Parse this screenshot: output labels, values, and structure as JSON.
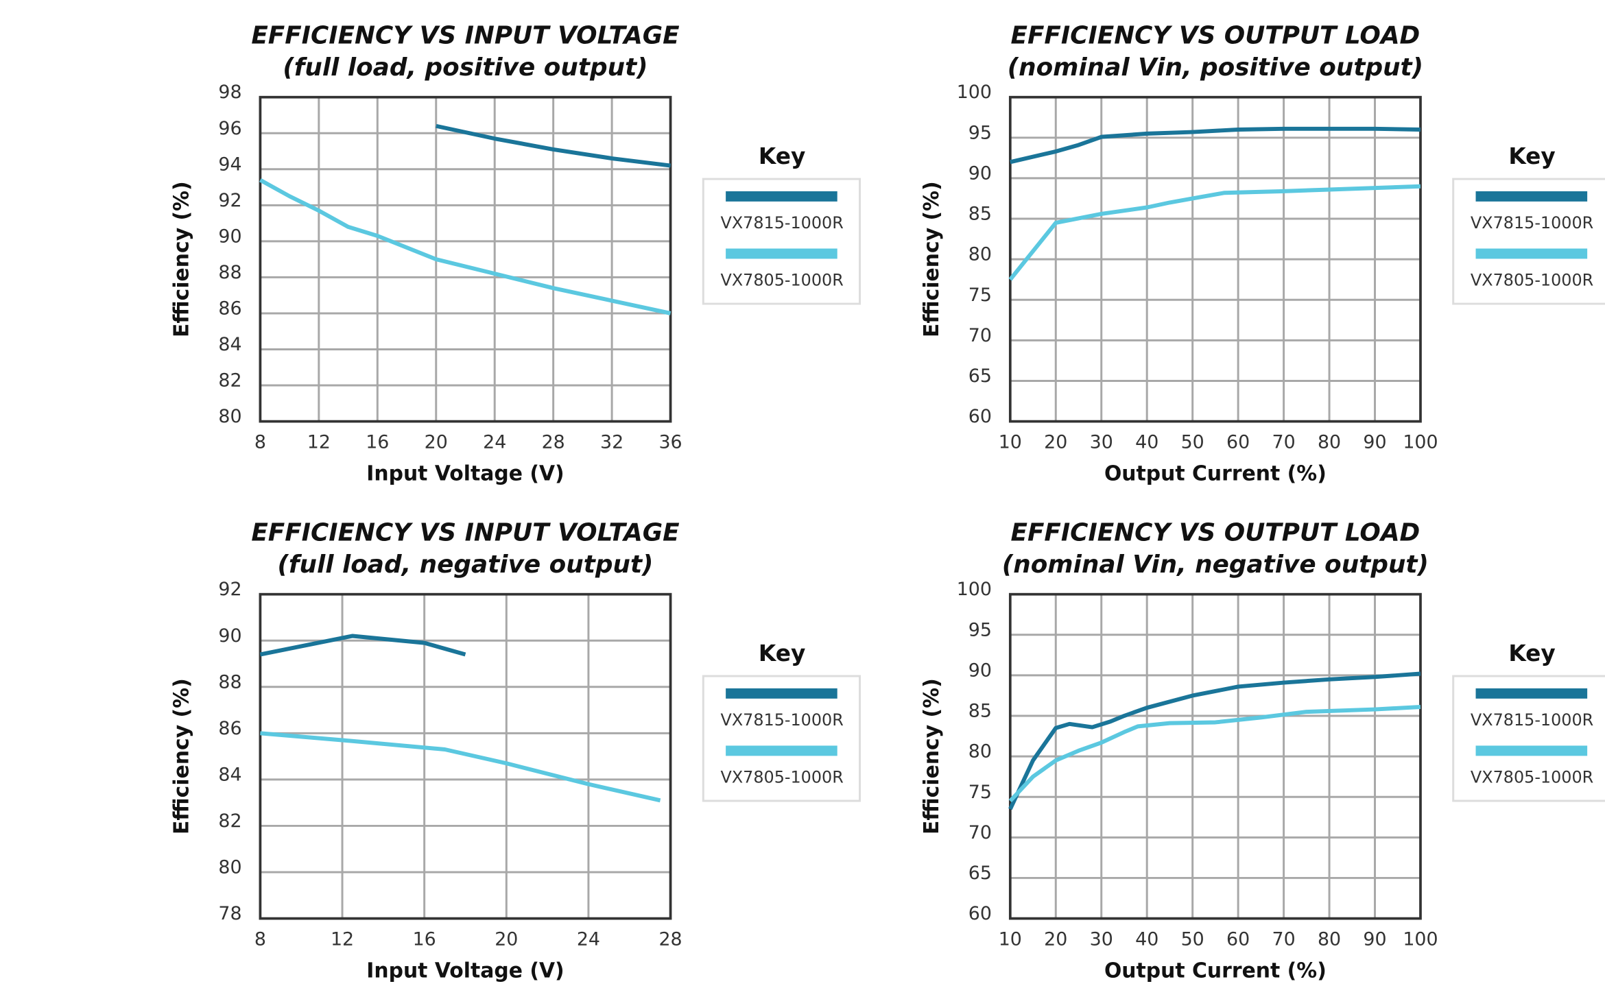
{
  "chart_data": [
    {
      "type": "line",
      "title": "EFFICIENCY VS INPUT VOLTAGE",
      "subtitle": "(full load, positive output)",
      "x_label": "Input Voltage (V)",
      "y_label": "Efficiency (%)",
      "legend_title": "Key",
      "grid": true,
      "xlim": [
        8,
        36
      ],
      "xticks": [
        8,
        12,
        16,
        20,
        24,
        28,
        32,
        36
      ],
      "ylim": [
        80,
        98
      ],
      "yticks": [
        80,
        82,
        84,
        86,
        88,
        90,
        92,
        94,
        96,
        98
      ],
      "series": [
        {
          "name": "VX7815-1000R",
          "color": "#1a7599",
          "x": [
            20,
            24,
            28,
            32,
            36
          ],
          "values": [
            96.4,
            95.7,
            95.1,
            94.6,
            94.2
          ]
        },
        {
          "name": "VX7805-1000R",
          "color": "#5bc8e0",
          "x": [
            8,
            10,
            12,
            14,
            16,
            20,
            24,
            28,
            32,
            36
          ],
          "values": [
            93.4,
            92.5,
            91.7,
            90.8,
            90.3,
            89.0,
            88.2,
            87.4,
            86.7,
            86.0
          ]
        }
      ]
    },
    {
      "type": "line",
      "title": "EFFICIENCY VS OUTPUT LOAD",
      "subtitle": "(nominal Vin, positive output)",
      "x_label": "Output Current (%)",
      "y_label": "Efficiency (%)",
      "legend_title": "Key",
      "grid": true,
      "xlim": [
        10,
        100
      ],
      "xticks": [
        10,
        20,
        30,
        40,
        50,
        60,
        70,
        80,
        90,
        100
      ],
      "ylim": [
        60,
        100
      ],
      "yticks": [
        60,
        65,
        70,
        75,
        80,
        85,
        90,
        95,
        100
      ],
      "series": [
        {
          "name": "VX7815-1000R",
          "color": "#1a7599",
          "x": [
            10,
            20,
            25,
            30,
            40,
            50,
            60,
            70,
            80,
            90,
            100
          ],
          "values": [
            92.0,
            93.3,
            94.1,
            95.1,
            95.5,
            95.7,
            96.0,
            96.1,
            96.1,
            96.1,
            96.0
          ]
        },
        {
          "name": "VX7805-1000R",
          "color": "#5bc8e0",
          "x": [
            10,
            20,
            30,
            40,
            45,
            50,
            57,
            70,
            80,
            90,
            100
          ],
          "values": [
            77.5,
            84.5,
            85.6,
            86.4,
            87.0,
            87.5,
            88.2,
            88.4,
            88.6,
            88.8,
            89.0
          ]
        }
      ]
    },
    {
      "type": "line",
      "title": "EFFICIENCY VS INPUT VOLTAGE",
      "subtitle": "(full load, negative output)",
      "x_label": "Input Voltage (V)",
      "y_label": "Efficiency (%)",
      "legend_title": "Key",
      "grid": true,
      "xlim": [
        8,
        28
      ],
      "xticks": [
        8,
        12,
        16,
        20,
        24,
        28
      ],
      "ylim": [
        78,
        92
      ],
      "yticks": [
        78,
        80,
        82,
        84,
        86,
        88,
        90,
        92
      ],
      "series": [
        {
          "name": "VX7815-1000R",
          "color": "#1a7599",
          "x": [
            8,
            12.5,
            16,
            18
          ],
          "values": [
            89.4,
            90.2,
            89.9,
            89.4
          ]
        },
        {
          "name": "VX7805-1000R",
          "color": "#5bc8e0",
          "x": [
            8,
            12,
            17,
            20,
            24,
            27.5
          ],
          "values": [
            86.0,
            85.7,
            85.3,
            84.7,
            83.8,
            83.1
          ]
        }
      ]
    },
    {
      "type": "line",
      "title": "EFFICIENCY VS OUTPUT LOAD",
      "subtitle": "(nominal Vin, negative output)",
      "x_label": "Output Current (%)",
      "y_label": "Efficiency (%)",
      "legend_title": "Key",
      "grid": true,
      "xlim": [
        10,
        100
      ],
      "xticks": [
        10,
        20,
        30,
        40,
        50,
        60,
        70,
        80,
        90,
        100
      ],
      "ylim": [
        60,
        100
      ],
      "yticks": [
        60,
        65,
        70,
        75,
        80,
        85,
        90,
        95,
        100
      ],
      "series": [
        {
          "name": "VX7815-1000R",
          "color": "#1a7599",
          "x": [
            10,
            15,
            20,
            23,
            28,
            32,
            35,
            40,
            50,
            60,
            70,
            80,
            90,
            100
          ],
          "values": [
            73.5,
            79.5,
            83.5,
            84.0,
            83.6,
            84.3,
            85.0,
            86.0,
            87.5,
            88.6,
            89.1,
            89.5,
            89.8,
            90.2
          ]
        },
        {
          "name": "VX7805-1000R",
          "color": "#5bc8e0",
          "x": [
            10,
            15,
            20,
            25,
            30,
            35,
            38,
            45,
            55,
            65,
            75,
            90,
            100
          ],
          "values": [
            74.5,
            77.5,
            79.5,
            80.7,
            81.7,
            83.0,
            83.7,
            84.1,
            84.2,
            84.8,
            85.5,
            85.8,
            86.1
          ]
        }
      ]
    }
  ]
}
